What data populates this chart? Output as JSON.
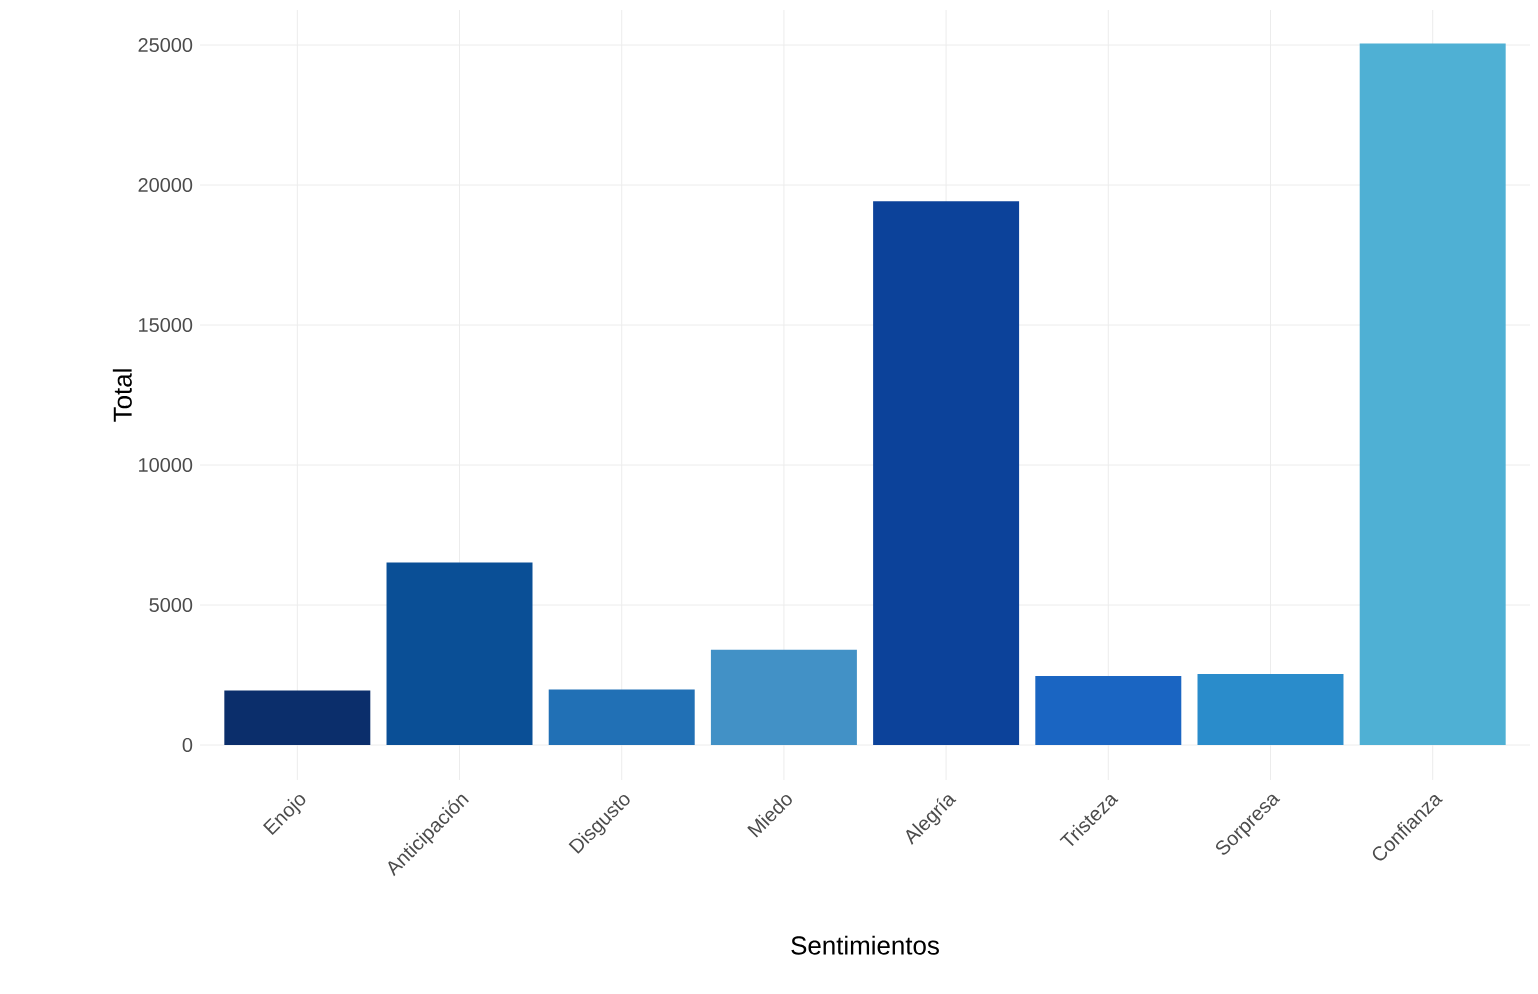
{
  "chart_data": {
    "type": "bar",
    "xlabel": "Sentimientos",
    "ylabel": "Total",
    "categories": [
      "Enojo",
      "Anticipación",
      "Disgusto",
      "Miedo",
      "Alegría",
      "Tristeza",
      "Sorpresa",
      "Confianza"
    ],
    "values": [
      1950,
      6520,
      1980,
      3400,
      19420,
      2460,
      2540,
      25050
    ],
    "colors": [
      "#0b2e6b",
      "#0a4f96",
      "#2170b5",
      "#4291c6",
      "#0c429a",
      "#1a65c2",
      "#2a8ccb",
      "#4fb0d4"
    ],
    "ylim": [
      -1250,
      26250
    ],
    "yticks": [
      0,
      5000,
      10000,
      15000,
      20000,
      25000
    ],
    "grid": true
  }
}
